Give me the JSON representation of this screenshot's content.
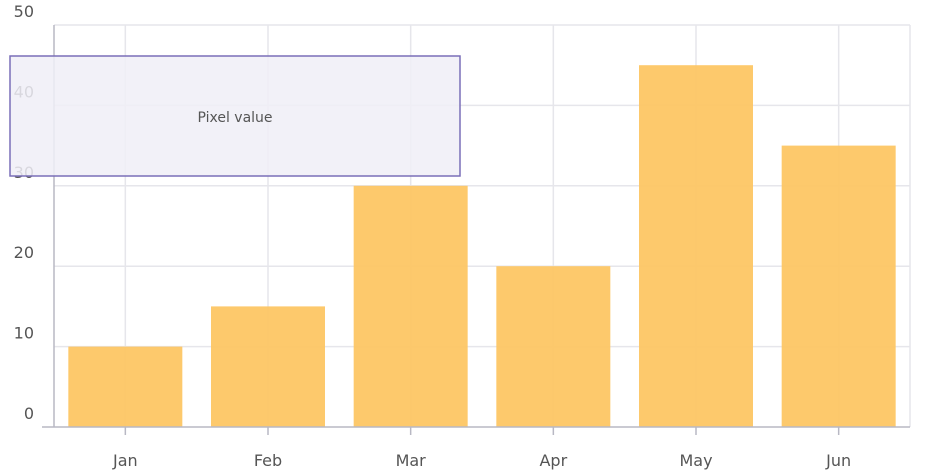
{
  "chart_data": {
    "type": "bar",
    "categories": [
      "Jan",
      "Feb",
      "Mar",
      "Apr",
      "May",
      "Jun"
    ],
    "values": [
      10,
      15,
      30,
      20,
      45,
      35
    ],
    "title": "",
    "xlabel": "",
    "ylabel": "",
    "ylim": [
      0,
      50
    ],
    "yticks": [
      0,
      10,
      20,
      30,
      40,
      50
    ],
    "grid": true,
    "bar_color": "#FDC664",
    "grid_color": "#E6E6EB",
    "axis_color": "#B8B8C4",
    "annotation": {
      "text": "Pixel value",
      "fill": "#F0EFF7",
      "stroke": "#7A6FB8"
    }
  }
}
